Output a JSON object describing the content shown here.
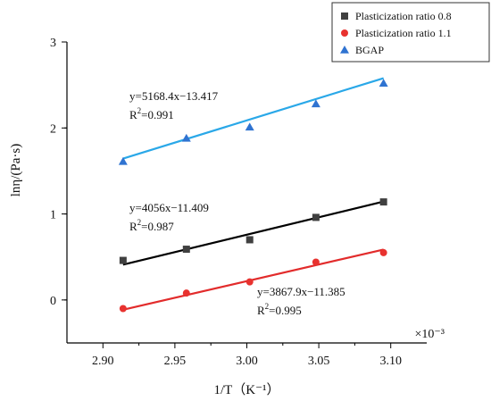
{
  "chart_data": {
    "type": "scatter",
    "xlabel": "1/T（K⁻¹）",
    "ylabel": "lnη/(Pa·s)",
    "x_scale_label": "×10⁻³",
    "xlim": [
      2.875,
      3.125
    ],
    "ylim": [
      -0.5,
      3.0
    ],
    "x_ticks": [
      2.9,
      2.95,
      3.0,
      3.05,
      3.1
    ],
    "x_tick_labels": [
      "2.90",
      "2.95",
      "3.00",
      "3.05",
      "3.10"
    ],
    "y_ticks": [
      0,
      1,
      2,
      3
    ],
    "y_tick_labels": [
      "0",
      "1",
      "2",
      "3"
    ],
    "grid": false,
    "legend_position": "top-right",
    "series": [
      {
        "name": "Plasticization ratio 0.8",
        "marker": "square",
        "color": "#404040",
        "line_color": "#000000",
        "x": [
          2.914,
          2.958,
          3.002,
          3.048,
          3.095
        ],
        "y": [
          0.46,
          0.59,
          0.7,
          0.96,
          1.14
        ],
        "fit": {
          "slope": 4.056,
          "intercept": -11.409
        },
        "equation": "y=4056x−11.409",
        "r2_prefix": "R",
        "r2_sup": "2",
        "r2_value": "=0.987"
      },
      {
        "name": "Plasticization ratio 1.1",
        "marker": "circle",
        "color": "#e8322f",
        "line_color": "#e22b2b",
        "x": [
          2.914,
          2.958,
          3.002,
          3.048,
          3.095
        ],
        "y": [
          -0.1,
          0.08,
          0.21,
          0.44,
          0.55
        ],
        "fit": {
          "slope": 3.8679,
          "intercept": -11.385
        },
        "equation": "y=3867.9x−11.385",
        "r2_prefix": "R",
        "r2_sup": "2",
        "r2_value": "=0.995"
      },
      {
        "name": "BGAP",
        "marker": "triangle",
        "color": "#2f73d1",
        "line_color": "#2aa8e8",
        "x": [
          2.914,
          2.958,
          3.002,
          3.048,
          3.095
        ],
        "y": [
          1.61,
          1.88,
          2.01,
          2.28,
          2.52
        ],
        "fit": {
          "slope": 5.1684,
          "intercept": -13.417
        },
        "equation": "y=5168.4x−13.417",
        "r2_prefix": "R",
        "r2_sup": "2",
        "r2_value": "=0.991"
      }
    ]
  }
}
